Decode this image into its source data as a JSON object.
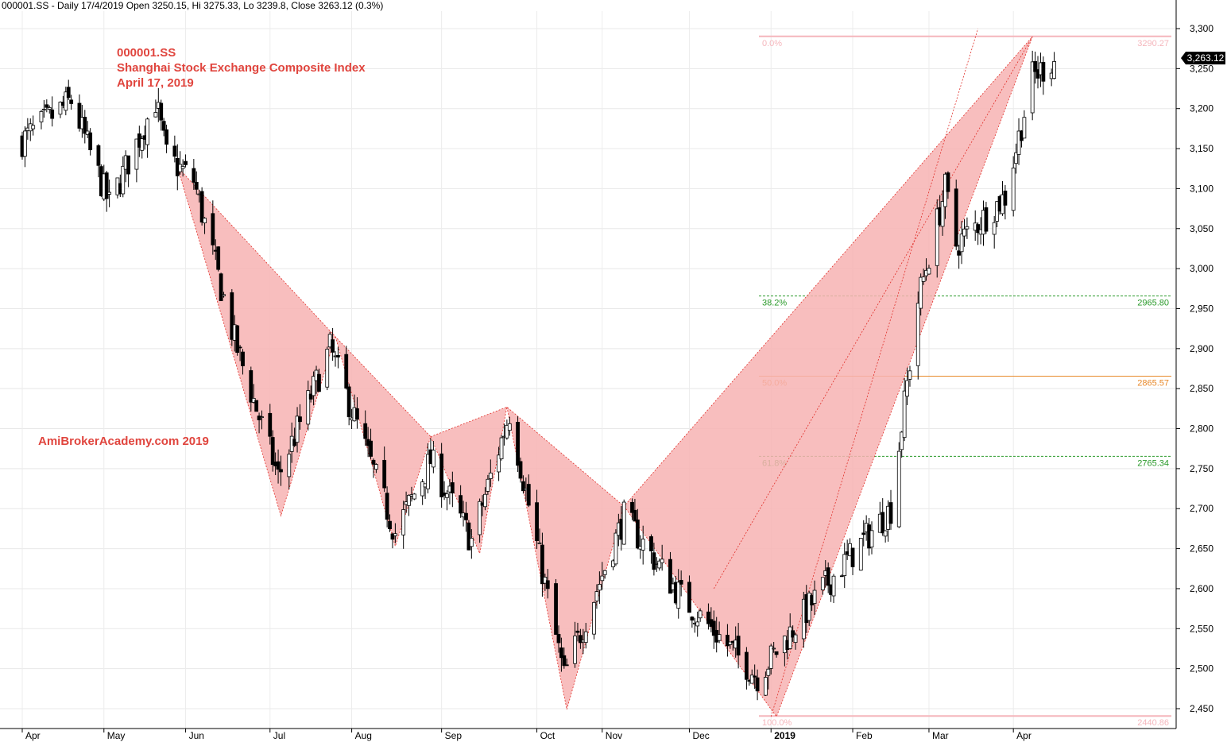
{
  "header": {
    "info": "000001.SS - Daily 17/4/2019 Open 3250.15, Hi 3275.33, Lo 3239.8, Close 3263.12 (0.3%)"
  },
  "annotation": {
    "ticker": "000001.SS",
    "name": "Shanghai Stock Exchange Composite Index",
    "date": "April 17, 2019",
    "watermark": "AmiBrokerAcademy.com  2019"
  },
  "colors": {
    "pattern_fill": "#f7b3b3",
    "pattern_line": "#e0302a",
    "fib_top_bottom": "#f5b6bc",
    "fib_green": "#2a9a2a",
    "fib_orange": "#e8892a",
    "text_red": "#e0453e",
    "candle": "#000000"
  },
  "chart_data": {
    "type": "candlestick",
    "title": "",
    "xlabel": "",
    "ylabel": "",
    "ylim": [
      2430,
      3310
    ],
    "y_ticks": [
      "3,300",
      "3,250",
      "3,200",
      "3,150",
      "3,100",
      "3,050",
      "3,000",
      "2,950",
      "2,900",
      "2,850",
      "2,800",
      "2,750",
      "2,700",
      "2,650",
      "2,600",
      "2,550",
      "2,500",
      "2,450"
    ],
    "x_months": [
      {
        "label": "Apr",
        "date": "2018-04-02"
      },
      {
        "label": "May",
        "date": "2018-05-02"
      },
      {
        "label": "Jun",
        "date": "2018-06-01"
      },
      {
        "label": "Jul",
        "date": "2018-07-02"
      },
      {
        "label": "Aug",
        "date": "2018-08-01"
      },
      {
        "label": "Sep",
        "date": "2018-09-03"
      },
      {
        "label": "Oct",
        "date": "2018-10-08"
      },
      {
        "label": "Nov",
        "date": "2018-11-01"
      },
      {
        "label": "Dec",
        "date": "2018-12-03"
      },
      {
        "label": "2019",
        "date": "2019-01-02"
      },
      {
        "label": "Feb",
        "date": "2019-02-01"
      },
      {
        "label": "Mar",
        "date": "2019-03-01"
      },
      {
        "label": "Apr",
        "date": "2019-04-01"
      }
    ],
    "last_close": "3,263.12",
    "fib_levels": [
      {
        "pct": "0.0%",
        "value": "3290.27",
        "price": 3290.27,
        "color": "pink"
      },
      {
        "pct": "38.2%",
        "value": "2965.80",
        "price": 2965.8,
        "color": "green"
      },
      {
        "pct": "50.0%",
        "value": "2865.57",
        "price": 2865.57,
        "color": "orange"
      },
      {
        "pct": "61.8%",
        "value": "2765.34",
        "price": 2765.34,
        "color": "green"
      },
      {
        "pct": "100.0%",
        "value": "2440.86",
        "price": 2440.86,
        "color": "pink"
      }
    ],
    "harmonic_pattern_points": [
      {
        "date": "2018-05-29",
        "price": 3127
      },
      {
        "date": "2018-07-06",
        "price": 2691
      },
      {
        "date": "2018-07-26",
        "price": 2915
      },
      {
        "date": "2018-08-17",
        "price": 2653
      },
      {
        "date": "2018-08-30",
        "price": 2790
      },
      {
        "date": "2018-09-17",
        "price": 2644
      },
      {
        "date": "2018-09-27",
        "price": 2827
      },
      {
        "date": "2018-10-19",
        "price": 2449
      },
      {
        "date": "2018-11-09",
        "price": 2703
      },
      {
        "date": "2019-01-04",
        "price": 2440
      },
      {
        "date": "2019-04-08",
        "price": 3290
      }
    ],
    "fill_triangles": [
      [
        0,
        1,
        2
      ],
      [
        2,
        3,
        4
      ],
      [
        4,
        5,
        6
      ],
      [
        6,
        7,
        8
      ],
      [
        8,
        9,
        10
      ]
    ],
    "diagonal_guides": [
      {
        "from": {
          "date": "2019-01-02",
          "price": 2440
        },
        "to": {
          "date": "2019-03-19",
          "price": 3300
        }
      },
      {
        "from": {
          "date": "2018-12-12",
          "price": 2600
        },
        "to": {
          "date": "2019-04-08",
          "price": 3290
        }
      }
    ],
    "candles_anchor_prices": [
      {
        "date": "2018-04-02",
        "close": 3160
      },
      {
        "date": "2018-04-20",
        "close": 3210
      },
      {
        "date": "2018-05-04",
        "close": 3080
      },
      {
        "date": "2018-05-21",
        "close": 3210
      },
      {
        "date": "2018-05-25",
        "close": 3140
      },
      {
        "date": "2018-06-04",
        "close": 3110
      },
      {
        "date": "2018-06-19",
        "close": 2910
      },
      {
        "date": "2018-07-05",
        "close": 2740
      },
      {
        "date": "2018-07-24",
        "close": 2900
      },
      {
        "date": "2018-08-17",
        "close": 2670
      },
      {
        "date": "2018-08-30",
        "close": 2760
      },
      {
        "date": "2018-09-14",
        "close": 2660
      },
      {
        "date": "2018-09-28",
        "close": 2820
      },
      {
        "date": "2018-10-18",
        "close": 2490
      },
      {
        "date": "2018-11-09",
        "close": 2690
      },
      {
        "date": "2018-11-30",
        "close": 2590
      },
      {
        "date": "2018-12-28",
        "close": 2490
      },
      {
        "date": "2019-01-21",
        "close": 2600
      },
      {
        "date": "2019-02-15",
        "close": 2700
      },
      {
        "date": "2019-02-25",
        "close": 2960
      },
      {
        "date": "2019-03-07",
        "close": 3100
      },
      {
        "date": "2019-03-11",
        "close": 3030
      },
      {
        "date": "2019-03-29",
        "close": 3090
      },
      {
        "date": "2019-04-08",
        "close": 3240
      },
      {
        "date": "2019-04-17",
        "close": 3263.12
      }
    ]
  }
}
